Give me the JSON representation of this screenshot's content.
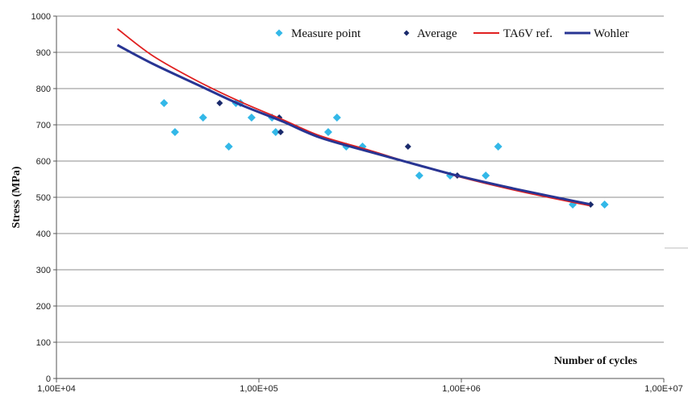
{
  "chart_data": {
    "type": "scatter",
    "title": "",
    "xlabel": "Number of cycles",
    "ylabel": "Stress (MPa)",
    "xscale": "log",
    "xlim": [
      10000,
      10000000
    ],
    "ylim": [
      0,
      1000
    ],
    "x_ticks": [
      {
        "value": 10000,
        "label": "1,00E+04"
      },
      {
        "value": 100000,
        "label": "1,00E+05"
      },
      {
        "value": 1000000,
        "label": "1,00E+06"
      },
      {
        "value": 10000000,
        "label": "1,00E+07"
      }
    ],
    "y_ticks": [
      {
        "value": 0,
        "label": "0"
      },
      {
        "value": 100,
        "label": "100"
      },
      {
        "value": 200,
        "label": "200"
      },
      {
        "value": 300,
        "label": "300"
      },
      {
        "value": 400,
        "label": "400"
      },
      {
        "value": 500,
        "label": "500"
      },
      {
        "value": 600,
        "label": "600"
      },
      {
        "value": 700,
        "label": "700"
      },
      {
        "value": 800,
        "label": "800"
      },
      {
        "value": 900,
        "label": "900"
      },
      {
        "value": 1000,
        "label": "1000"
      }
    ],
    "grid": {
      "horizontal": true,
      "vertical": false
    },
    "legend_position": "top-right",
    "series": [
      {
        "name": "Measure point",
        "kind": "scatter",
        "marker": "diamond",
        "color": "#33b8e8",
        "points": [
          [
            34000,
            760
          ],
          [
            38500,
            680
          ],
          [
            53000,
            720
          ],
          [
            71000,
            640
          ],
          [
            77000,
            760
          ],
          [
            81000,
            760
          ],
          [
            92000,
            720
          ],
          [
            116000,
            720
          ],
          [
            121000,
            680
          ],
          [
            220000,
            680
          ],
          [
            243000,
            720
          ],
          [
            270000,
            640
          ],
          [
            325000,
            640
          ],
          [
            620000,
            560
          ],
          [
            880000,
            560
          ],
          [
            1320000,
            560
          ],
          [
            1520000,
            640
          ],
          [
            3550000,
            480
          ],
          [
            5100000,
            480
          ]
        ]
      },
      {
        "name": "Average",
        "kind": "scatter",
        "marker": "diamond",
        "color": "#1a2a6c",
        "points": [
          [
            64000,
            760
          ],
          [
            126000,
            720
          ],
          [
            128000,
            680
          ],
          [
            545000,
            640
          ],
          [
            955000,
            560
          ],
          [
            4350000,
            480
          ]
        ]
      },
      {
        "name": "TA6V ref.",
        "kind": "line",
        "color": "#e02020",
        "points": [
          [
            20000,
            965
          ],
          [
            30000,
            890
          ],
          [
            50000,
            820
          ],
          [
            80000,
            765
          ],
          [
            130000,
            715
          ],
          [
            200000,
            670
          ],
          [
            350000,
            630
          ],
          [
            600000,
            590
          ],
          [
            1000000,
            555
          ],
          [
            2000000,
            515
          ],
          [
            4300000,
            477
          ]
        ]
      },
      {
        "name": "Wohler",
        "kind": "line",
        "color": "#283593",
        "points": [
          [
            20000,
            920
          ],
          [
            30000,
            868
          ],
          [
            50000,
            810
          ],
          [
            80000,
            757
          ],
          [
            130000,
            710
          ],
          [
            200000,
            665
          ],
          [
            350000,
            626
          ],
          [
            600000,
            590
          ],
          [
            1000000,
            557
          ],
          [
            2000000,
            519
          ],
          [
            4300000,
            481
          ]
        ]
      }
    ]
  }
}
